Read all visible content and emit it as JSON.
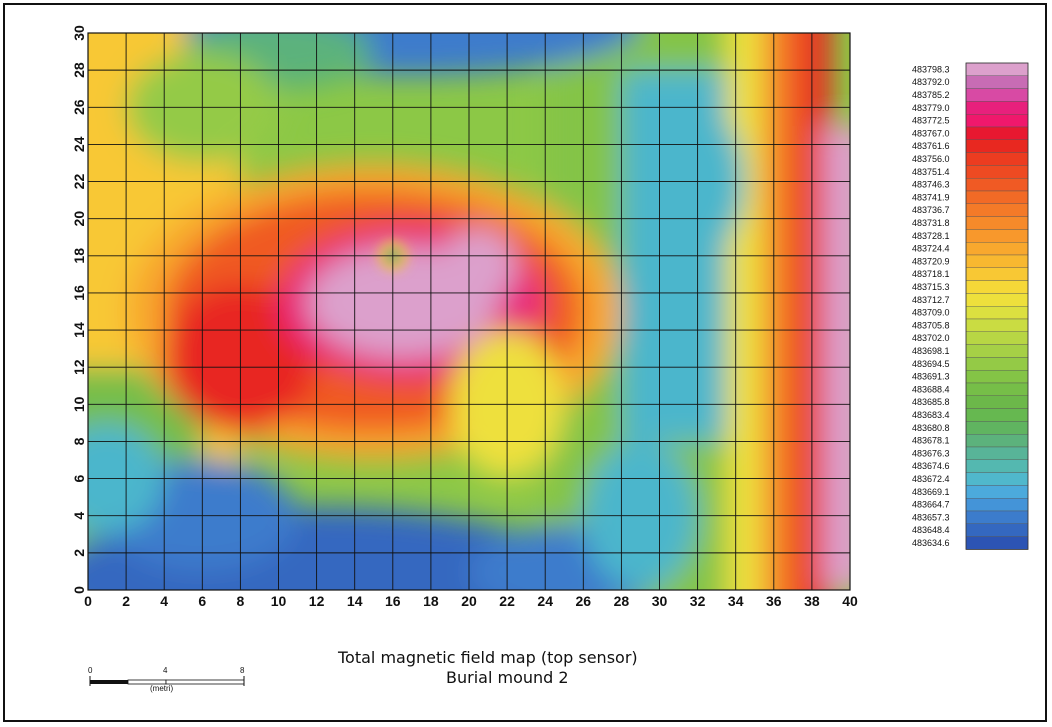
{
  "chart_data": {
    "type": "heatmap",
    "title": "Total magnetic field map (top sensor)",
    "subtitle": "Burial mound 2",
    "x_ticks": [
      "0",
      "2",
      "4",
      "6",
      "8",
      "10",
      "12",
      "14",
      "16",
      "18",
      "20",
      "22",
      "24",
      "26",
      "28",
      "30",
      "32",
      "34",
      "36",
      "38",
      "40"
    ],
    "y_ticks": [
      "0",
      "2",
      "4",
      "6",
      "8",
      "10",
      "12",
      "14",
      "16",
      "18",
      "20",
      "22",
      "24",
      "26",
      "28",
      "30"
    ],
    "xlim": [
      0,
      40
    ],
    "ylim": [
      0,
      30
    ],
    "grid": true,
    "legend": {
      "placement": "right",
      "values": [
        "483798.3",
        "483792.0",
        "483785.2",
        "483779.0",
        "483772.5",
        "483767.0",
        "483761.6",
        "483756.0",
        "483751.4",
        "483746.3",
        "483741.9",
        "483736.7",
        "483731.8",
        "483728.1",
        "483724.4",
        "483720.9",
        "483718.1",
        "483715.3",
        "483712.7",
        "483709.0",
        "483705.8",
        "483702.0",
        "483698.1",
        "483694.5",
        "483691.3",
        "483688.4",
        "483685.8",
        "483683.4",
        "483680.8",
        "483678.1",
        "483676.3",
        "483674.6",
        "483672.4",
        "483669.1",
        "483664.7",
        "483657.3",
        "483648.4",
        "483634.6"
      ],
      "colors": [
        "#dca0cc",
        "#c86cb4",
        "#d84aa4",
        "#e8207c",
        "#f0186c",
        "#e81830",
        "#e82820",
        "#ec3c20",
        "#ee4a22",
        "#f05a24",
        "#f26a26",
        "#f47a28",
        "#f68a2a",
        "#f8982c",
        "#f8a82e",
        "#f8b830",
        "#f8c834",
        "#f6d838",
        "#eee03c",
        "#dce040",
        "#cadc42",
        "#b8d644",
        "#a6d046",
        "#94ca46",
        "#84c446",
        "#76be48",
        "#6cb84a",
        "#66b850",
        "#60b460",
        "#5cb27c",
        "#58b498",
        "#54b8b0",
        "#50b8cc",
        "#4caadc",
        "#4494d8",
        "#3c7ccc",
        "#3468c0",
        "#2c54b4"
      ]
    },
    "scale_bar": {
      "ticks": [
        "0",
        "4",
        "8"
      ],
      "unit": "(metri)"
    }
  }
}
